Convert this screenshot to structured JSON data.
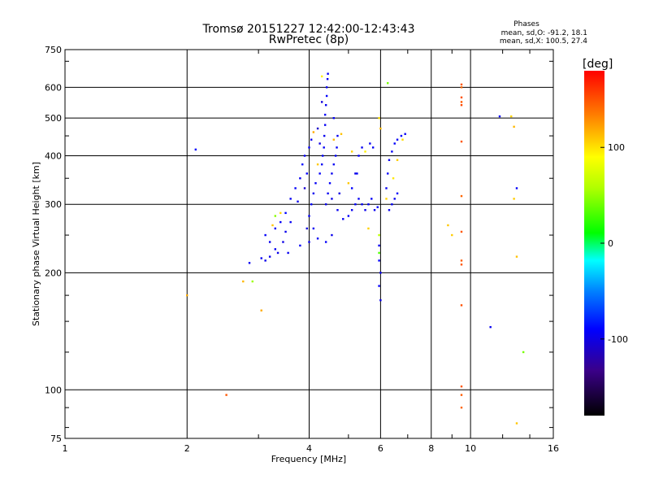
{
  "chart_data": {
    "type": "scatter",
    "title": "Tromsø 20151227 12:42:00-12:43:43",
    "subtitle": "RwPretec (8p)",
    "xlabel": "Frequency [MHz]",
    "ylabel": "Stationary phase Virtual Height [km]",
    "x_scale": "log",
    "y_scale": "log",
    "xlim": [
      1,
      16
    ],
    "ylim": [
      75,
      750
    ],
    "x_ticks": [
      1,
      2,
      4,
      6,
      8,
      10,
      16
    ],
    "x_tick_labels": [
      "1",
      "2",
      "4",
      "6",
      "8",
      "10",
      "16"
    ],
    "y_ticks": [
      75,
      100,
      200,
      300,
      400,
      500,
      600,
      750
    ],
    "y_tick_labels": [
      "75",
      "100",
      "200",
      "300",
      "400",
      "500",
      "600",
      "750"
    ],
    "grid": true,
    "stats": {
      "heading": "Phases",
      "line_o": "mean, sd,O: -91.2, 18.1",
      "line_x": "mean, sd,X: 100.5, 27.4"
    },
    "colorbar": {
      "label": "[deg]",
      "range": [
        -180,
        180
      ],
      "ticks": [
        -100,
        0,
        100
      ],
      "tick_labels": [
        "-100",
        "0",
        "100"
      ]
    },
    "point_color_encoding": "phase in degrees (colorbar)",
    "series": [
      {
        "points": [
          [
            3.05,
            218,
            -95
          ],
          [
            3.12,
            215,
            -98
          ],
          [
            3.2,
            220,
            -97
          ],
          [
            3.3,
            230,
            -94
          ],
          [
            3.2,
            240,
            -96
          ],
          [
            3.12,
            250,
            -92
          ],
          [
            3.3,
            260,
            -95
          ],
          [
            3.4,
            270,
            -93
          ],
          [
            3.5,
            255,
            -97
          ],
          [
            3.5,
            285,
            -90
          ],
          [
            3.6,
            310,
            -94
          ],
          [
            3.7,
            330,
            -92
          ],
          [
            3.8,
            350,
            -96
          ],
          [
            3.85,
            380,
            -88
          ],
          [
            3.9,
            400,
            -95
          ],
          [
            4.0,
            420,
            -92
          ],
          [
            4.05,
            440,
            -96
          ],
          [
            3.95,
            360,
            -91
          ],
          [
            3.75,
            305,
            -98
          ],
          [
            3.6,
            270,
            -94
          ],
          [
            3.45,
            240,
            -99
          ],
          [
            3.35,
            225,
            -97
          ],
          [
            3.55,
            225,
            -95
          ],
          [
            3.8,
            235,
            -93
          ],
          [
            4.0,
            240,
            -96
          ],
          [
            4.2,
            245,
            -94
          ],
          [
            4.4,
            240,
            -92
          ],
          [
            4.55,
            250,
            -97
          ],
          [
            4.1,
            260,
            -95
          ],
          [
            4.0,
            280,
            -93
          ],
          [
            4.05,
            300,
            -91
          ],
          [
            4.1,
            320,
            -96
          ],
          [
            4.15,
            340,
            -94
          ],
          [
            4.25,
            360,
            -92
          ],
          [
            4.3,
            380,
            -95
          ],
          [
            4.32,
            400,
            -90
          ],
          [
            4.35,
            420,
            -93
          ],
          [
            4.36,
            450,
            -96
          ],
          [
            4.38,
            480,
            -94
          ],
          [
            4.38,
            510,
            -92
          ],
          [
            4.4,
            540,
            -95
          ],
          [
            4.42,
            570,
            -91
          ],
          [
            4.42,
            600,
            -94
          ],
          [
            4.44,
            630,
            -96
          ],
          [
            4.45,
            650,
            -93
          ],
          [
            4.4,
            300,
            -97
          ],
          [
            4.45,
            320,
            -94
          ],
          [
            4.5,
            340,
            -92
          ],
          [
            4.55,
            360,
            -96
          ],
          [
            4.6,
            380,
            -94
          ],
          [
            4.65,
            400,
            -90
          ],
          [
            4.68,
            420,
            -93
          ],
          [
            4.7,
            450,
            -96
          ],
          [
            4.6,
            500,
            -92
          ],
          [
            4.55,
            310,
            -98
          ],
          [
            4.7,
            290,
            -95
          ],
          [
            4.85,
            275,
            -94
          ],
          [
            5.0,
            280,
            -92
          ],
          [
            5.1,
            290,
            -96
          ],
          [
            5.2,
            300,
            -91
          ],
          [
            5.3,
            310,
            -94
          ],
          [
            5.4,
            300,
            -92
          ],
          [
            5.5,
            290,
            -97
          ],
          [
            5.6,
            300,
            -95
          ],
          [
            5.7,
            310,
            -93
          ],
          [
            5.8,
            290,
            -96
          ],
          [
            5.9,
            295,
            -94
          ],
          [
            5.1,
            330,
            -90
          ],
          [
            5.25,
            360,
            -93
          ],
          [
            5.3,
            400,
            -92
          ],
          [
            5.4,
            420,
            -95
          ],
          [
            5.75,
            420,
            -94
          ],
          [
            5.95,
            235,
            -96
          ],
          [
            5.95,
            215,
            -92
          ],
          [
            6.0,
            200,
            -95
          ],
          [
            5.95,
            185,
            -93
          ],
          [
            6.0,
            170,
            -97
          ],
          [
            6.2,
            330,
            -94
          ],
          [
            6.25,
            360,
            -92
          ],
          [
            6.3,
            390,
            -96
          ],
          [
            6.4,
            410,
            -94
          ],
          [
            6.5,
            430,
            -91
          ],
          [
            6.6,
            440,
            -94
          ],
          [
            6.75,
            450,
            -92
          ],
          [
            6.9,
            455,
            -95
          ],
          [
            6.3,
            290,
            -96
          ],
          [
            6.4,
            300,
            -93
          ],
          [
            6.5,
            310,
            -95
          ],
          [
            6.6,
            320,
            -92
          ],
          [
            2.1,
            415,
            -90
          ],
          [
            2.85,
            212,
            -95
          ],
          [
            11.8,
            505,
            -94
          ],
          [
            13.0,
            330,
            -92
          ],
          [
            11.2,
            145,
            -95
          ],
          [
            4.2,
            470,
            -110
          ],
          [
            4.3,
            550,
            -105
          ],
          [
            4.25,
            430,
            -100
          ],
          [
            3.9,
            330,
            -108
          ],
          [
            5.65,
            430,
            -95
          ],
          [
            4.75,
            320,
            -101
          ],
          [
            5.2,
            360,
            -99
          ],
          [
            3.95,
            260,
            -103
          ]
        ]
      },
      {
        "points": [
          [
            4.3,
            640,
            95
          ],
          [
            4.2,
            380,
            110
          ],
          [
            4.1,
            460,
            120
          ],
          [
            4.6,
            440,
            115
          ],
          [
            5.1,
            410,
            105
          ],
          [
            5.95,
            500,
            100
          ],
          [
            6.0,
            470,
            115
          ],
          [
            6.2,
            310,
            105
          ],
          [
            6.45,
            350,
            98
          ],
          [
            6.6,
            390,
            108
          ],
          [
            6.8,
            440,
            102
          ],
          [
            2.75,
            190,
            115
          ],
          [
            3.25,
            265,
            110
          ],
          [
            3.4,
            285,
            104
          ],
          [
            4.8,
            455,
            112
          ],
          [
            5.5,
            410,
            95
          ],
          [
            12.6,
            505,
            105
          ],
          [
            12.8,
            475,
            115
          ],
          [
            12.8,
            310,
            108
          ],
          [
            13.0,
            220,
            112
          ],
          [
            13.0,
            82,
            110
          ],
          [
            2.0,
            175,
            120
          ],
          [
            8.8,
            265,
            110
          ],
          [
            9.0,
            250,
            108
          ],
          [
            3.05,
            160,
            120
          ],
          [
            5.0,
            340,
            110
          ],
          [
            5.6,
            260,
            106
          ],
          [
            6.25,
            615,
            40
          ],
          [
            5.95,
            250,
            60
          ],
          [
            5.95,
            225,
            30
          ],
          [
            13.5,
            125,
            40
          ],
          [
            2.9,
            190,
            50
          ],
          [
            3.3,
            280,
            45
          ],
          [
            9.5,
            610,
            150
          ],
          [
            9.5,
            600,
            145
          ],
          [
            9.5,
            565,
            152
          ],
          [
            9.5,
            550,
            148
          ],
          [
            9.5,
            540,
            155
          ],
          [
            9.5,
            435,
            150
          ],
          [
            9.5,
            315,
            145
          ],
          [
            9.5,
            255,
            150
          ],
          [
            9.5,
            215,
            148
          ],
          [
            9.5,
            210,
            150
          ],
          [
            9.5,
            165,
            152
          ],
          [
            9.5,
            102,
            150
          ],
          [
            9.5,
            97,
            148
          ],
          [
            9.5,
            90,
            145
          ],
          [
            2.5,
            97,
            150
          ]
        ]
      }
    ]
  }
}
